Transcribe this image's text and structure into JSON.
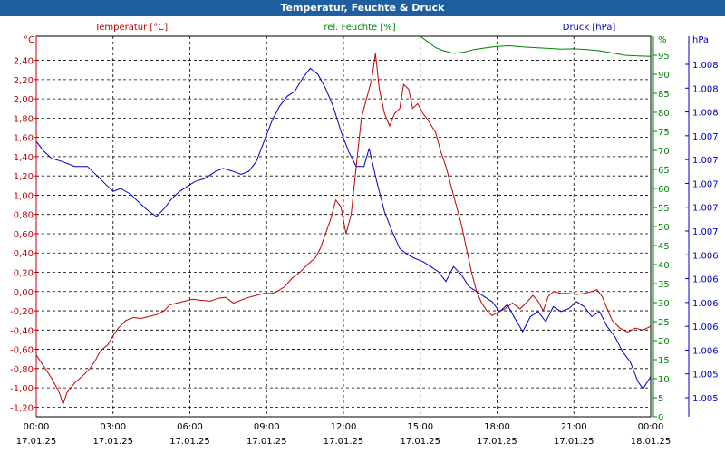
{
  "window": {
    "title": "Temperatur, Feuchte & Druck"
  },
  "chart_data": {
    "type": "line",
    "title": "Temperatur, Feuchte & Druck",
    "x_ticks": [
      {
        "time": "00:00",
        "date": "17.01.25"
      },
      {
        "time": "03:00",
        "date": "17.01.25"
      },
      {
        "time": "06:00",
        "date": "17.01.25"
      },
      {
        "time": "09:00",
        "date": "17.01.25"
      },
      {
        "time": "12:00",
        "date": "17.01.25"
      },
      {
        "time": "15:00",
        "date": "17.01.25"
      },
      {
        "time": "18:00",
        "date": "17.01.25"
      },
      {
        "time": "21:00",
        "date": "17.01.25"
      },
      {
        "time": "00:00",
        "date": "18.01.25"
      }
    ],
    "x_range_hours": [
      0,
      24
    ],
    "axes": {
      "temperature": {
        "unit": "°C",
        "min": -1.3,
        "max": 2.65,
        "color": "#c00000",
        "ticks": [
          "2,40",
          "2,20",
          "2,00",
          "1,80",
          "1,60",
          "1,40",
          "1,20",
          "1,00",
          "0,80",
          "0,60",
          "0,40",
          "0,20",
          "0,00",
          "-0,20",
          "-0,40",
          "-0,60",
          "-0,80",
          "-1,00",
          "-1,20"
        ]
      },
      "humidity": {
        "unit": "%",
        "min": 0,
        "max": 100,
        "color": "#008000",
        "ticks": [
          "95",
          "90",
          "85",
          "80",
          "75",
          "70",
          "65",
          "60",
          "55",
          "50",
          "45",
          "40",
          "35",
          "30",
          "25",
          "20",
          "15",
          "10",
          "5",
          "0"
        ]
      },
      "pressure": {
        "unit": "hPa",
        "min": 1004.7,
        "max": 1008.5,
        "color": "#0000c0",
        "ticks": [
          "1.008",
          "1.008",
          "1.008",
          "1.007",
          "1.007",
          "1.007",
          "1.007",
          "1.007",
          "1.006",
          "1.006",
          "1.006",
          "1.006",
          "1.006",
          "1.005",
          "1.005"
        ]
      }
    },
    "series": [
      {
        "name": "Temperatur [°C]",
        "axis": "temperature",
        "color": "#c00000",
        "points": [
          [
            0,
            -0.66
          ],
          [
            0.3,
            -0.78
          ],
          [
            0.6,
            -0.9
          ],
          [
            0.9,
            -1.05
          ],
          [
            1.05,
            -1.17
          ],
          [
            1.2,
            -1.05
          ],
          [
            1.5,
            -0.95
          ],
          [
            1.8,
            -0.88
          ],
          [
            2.1,
            -0.8
          ],
          [
            2.3,
            -0.72
          ],
          [
            2.5,
            -0.62
          ],
          [
            2.8,
            -0.55
          ],
          [
            3.0,
            -0.46
          ],
          [
            3.2,
            -0.38
          ],
          [
            3.5,
            -0.3
          ],
          [
            3.8,
            -0.27
          ],
          [
            4.1,
            -0.28
          ],
          [
            4.4,
            -0.26
          ],
          [
            4.7,
            -0.24
          ],
          [
            5.0,
            -0.2
          ],
          [
            5.2,
            -0.14
          ],
          [
            5.5,
            -0.12
          ],
          [
            5.8,
            -0.1
          ],
          [
            6.1,
            -0.08
          ],
          [
            6.4,
            -0.09
          ],
          [
            6.8,
            -0.1
          ],
          [
            7.1,
            -0.07
          ],
          [
            7.4,
            -0.06
          ],
          [
            7.7,
            -0.12
          ],
          [
            8.0,
            -0.09
          ],
          [
            8.3,
            -0.06
          ],
          [
            8.6,
            -0.04
          ],
          [
            8.9,
            -0.02
          ],
          [
            9.2,
            -0.02
          ],
          [
            9.4,
            0.0
          ],
          [
            9.7,
            0.05
          ],
          [
            10.0,
            0.14
          ],
          [
            10.3,
            0.2
          ],
          [
            10.6,
            0.28
          ],
          [
            10.9,
            0.35
          ],
          [
            11.1,
            0.45
          ],
          [
            11.3,
            0.6
          ],
          [
            11.5,
            0.75
          ],
          [
            11.7,
            0.95
          ],
          [
            11.9,
            0.88
          ],
          [
            12.1,
            0.6
          ],
          [
            12.3,
            0.8
          ],
          [
            12.5,
            1.3
          ],
          [
            12.7,
            1.8
          ],
          [
            12.9,
            2.0
          ],
          [
            13.1,
            2.2
          ],
          [
            13.25,
            2.47
          ],
          [
            13.4,
            2.1
          ],
          [
            13.6,
            1.85
          ],
          [
            13.8,
            1.72
          ],
          [
            14.0,
            1.85
          ],
          [
            14.2,
            1.9
          ],
          [
            14.35,
            2.15
          ],
          [
            14.55,
            2.1
          ],
          [
            14.7,
            1.9
          ],
          [
            14.9,
            1.95
          ],
          [
            15.1,
            1.85
          ],
          [
            15.3,
            1.78
          ],
          [
            15.6,
            1.65
          ],
          [
            15.8,
            1.45
          ],
          [
            16.0,
            1.3
          ],
          [
            16.2,
            1.1
          ],
          [
            16.4,
            0.9
          ],
          [
            16.6,
            0.7
          ],
          [
            16.8,
            0.45
          ],
          [
            17.0,
            0.2
          ],
          [
            17.2,
            0.0
          ],
          [
            17.4,
            -0.12
          ],
          [
            17.6,
            -0.2
          ],
          [
            17.8,
            -0.25
          ],
          [
            18.0,
            -0.22
          ],
          [
            18.3,
            -0.18
          ],
          [
            18.6,
            -0.12
          ],
          [
            18.9,
            -0.18
          ],
          [
            19.2,
            -0.1
          ],
          [
            19.4,
            -0.04
          ],
          [
            19.6,
            -0.1
          ],
          [
            19.8,
            -0.2
          ],
          [
            20.0,
            -0.05
          ],
          [
            20.2,
            0.0
          ],
          [
            20.5,
            -0.02
          ],
          [
            20.8,
            -0.02
          ],
          [
            21.1,
            -0.03
          ],
          [
            21.4,
            -0.02
          ],
          [
            21.7,
            0.0
          ],
          [
            21.9,
            0.02
          ],
          [
            22.1,
            -0.05
          ],
          [
            22.3,
            -0.18
          ],
          [
            22.5,
            -0.3
          ],
          [
            22.8,
            -0.38
          ],
          [
            23.1,
            -0.42
          ],
          [
            23.4,
            -0.38
          ],
          [
            23.7,
            -0.4
          ],
          [
            24.0,
            -0.36
          ]
        ]
      },
      {
        "name": "rel. Feuchte [%]",
        "axis": "humidity",
        "color": "#008000",
        "points": [
          [
            15.0,
            100
          ],
          [
            15.3,
            98.5
          ],
          [
            15.6,
            97
          ],
          [
            15.9,
            96.2
          ],
          [
            16.3,
            95.5
          ],
          [
            16.7,
            95.8
          ],
          [
            17.1,
            96.5
          ],
          [
            17.6,
            97.0
          ],
          [
            18.0,
            97.3
          ],
          [
            18.5,
            97.5
          ],
          [
            19.0,
            97.2
          ],
          [
            19.5,
            97.0
          ],
          [
            20.0,
            96.8
          ],
          [
            20.5,
            96.6
          ],
          [
            21.0,
            96.7
          ],
          [
            21.5,
            96.5
          ],
          [
            22.0,
            96.2
          ],
          [
            22.5,
            95.6
          ],
          [
            23.0,
            95.0
          ],
          [
            23.5,
            94.8
          ],
          [
            24.0,
            94.7
          ]
        ]
      },
      {
        "name": "Druck [hPa]",
        "axis": "pressure",
        "color": "#0000c0",
        "points": [
          [
            0,
            1007.45
          ],
          [
            0.3,
            1007.35
          ],
          [
            0.6,
            1007.28
          ],
          [
            1.0,
            1007.25
          ],
          [
            1.5,
            1007.2
          ],
          [
            2.0,
            1007.2
          ],
          [
            2.4,
            1007.1
          ],
          [
            2.8,
            1007.0
          ],
          [
            3.0,
            1006.95
          ],
          [
            3.3,
            1006.98
          ],
          [
            3.7,
            1006.92
          ],
          [
            4.1,
            1006.82
          ],
          [
            4.4,
            1006.75
          ],
          [
            4.7,
            1006.7
          ],
          [
            5.0,
            1006.78
          ],
          [
            5.3,
            1006.88
          ],
          [
            5.6,
            1006.95
          ],
          [
            5.9,
            1007.0
          ],
          [
            6.2,
            1007.05
          ],
          [
            6.6,
            1007.08
          ],
          [
            7.0,
            1007.15
          ],
          [
            7.3,
            1007.18
          ],
          [
            7.7,
            1007.15
          ],
          [
            8.0,
            1007.12
          ],
          [
            8.3,
            1007.15
          ],
          [
            8.6,
            1007.25
          ],
          [
            8.9,
            1007.45
          ],
          [
            9.2,
            1007.65
          ],
          [
            9.5,
            1007.8
          ],
          [
            9.8,
            1007.9
          ],
          [
            10.1,
            1007.95
          ],
          [
            10.4,
            1008.08
          ],
          [
            10.7,
            1008.18
          ],
          [
            11.0,
            1008.12
          ],
          [
            11.3,
            1007.98
          ],
          [
            11.6,
            1007.8
          ],
          [
            11.9,
            1007.55
          ],
          [
            12.2,
            1007.35
          ],
          [
            12.5,
            1007.2
          ],
          [
            12.8,
            1007.2
          ],
          [
            13.0,
            1007.38
          ],
          [
            13.3,
            1007.05
          ],
          [
            13.6,
            1006.75
          ],
          [
            13.9,
            1006.55
          ],
          [
            14.2,
            1006.38
          ],
          [
            14.5,
            1006.32
          ],
          [
            14.8,
            1006.28
          ],
          [
            15.1,
            1006.25
          ],
          [
            15.4,
            1006.2
          ],
          [
            15.7,
            1006.15
          ],
          [
            16.0,
            1006.05
          ],
          [
            16.3,
            1006.2
          ],
          [
            16.6,
            1006.12
          ],
          [
            16.9,
            1006.0
          ],
          [
            17.2,
            1005.95
          ],
          [
            17.5,
            1005.9
          ],
          [
            17.8,
            1005.85
          ],
          [
            18.1,
            1005.75
          ],
          [
            18.4,
            1005.82
          ],
          [
            18.7,
            1005.68
          ],
          [
            19.0,
            1005.55
          ],
          [
            19.3,
            1005.7
          ],
          [
            19.6,
            1005.75
          ],
          [
            19.9,
            1005.65
          ],
          [
            20.2,
            1005.8
          ],
          [
            20.5,
            1005.75
          ],
          [
            20.8,
            1005.78
          ],
          [
            21.1,
            1005.85
          ],
          [
            21.4,
            1005.8
          ],
          [
            21.7,
            1005.7
          ],
          [
            22.0,
            1005.75
          ],
          [
            22.3,
            1005.6
          ],
          [
            22.6,
            1005.5
          ],
          [
            22.9,
            1005.35
          ],
          [
            23.2,
            1005.25
          ],
          [
            23.5,
            1005.05
          ],
          [
            23.7,
            1004.98
          ],
          [
            24.0,
            1005.1
          ]
        ]
      }
    ],
    "legend": [
      "Temperatur [°C]",
      "rel. Feuchte [%]",
      "Druck [hPa]"
    ],
    "grid": true
  }
}
